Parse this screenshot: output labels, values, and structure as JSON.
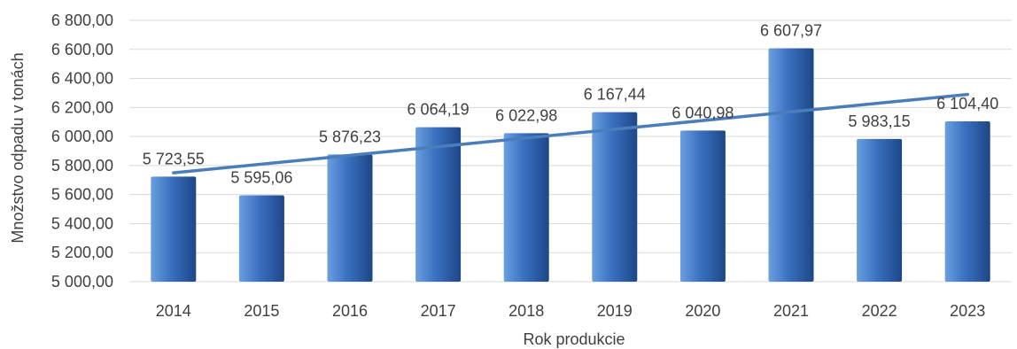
{
  "chart_data": {
    "type": "bar",
    "categories": [
      "2014",
      "2015",
      "2016",
      "2017",
      "2018",
      "2019",
      "2020",
      "2021",
      "2022",
      "2023"
    ],
    "values": [
      5723.55,
      5595.06,
      5876.23,
      6064.19,
      6022.98,
      6167.44,
      6040.98,
      6607.97,
      5983.15,
      6104.4
    ],
    "value_labels": [
      "5 723,55",
      "5 595,06",
      "5 876,23",
      "6 064,19",
      "6 022,98",
      "6 167,44",
      "6 040,98",
      "6 607,97",
      "5 983,15",
      "6 104,40"
    ],
    "xlabel": "Rok produkcie",
    "ylabel": "Množstvo odpadu v tonách",
    "ylim": [
      5000,
      6800
    ],
    "yticks": [
      5000,
      5200,
      5400,
      5600,
      5800,
      6000,
      6200,
      6400,
      6600,
      6800
    ],
    "ytick_labels": [
      "5 000,00",
      "5 200,00",
      "5 400,00",
      "5 600,00",
      "5 800,00",
      "6 000,00",
      "6 200,00",
      "6 400,00",
      "6 600,00",
      "6 800,00"
    ],
    "grid": true,
    "legend": "none",
    "trendline": {
      "type": "linear",
      "from": 5750,
      "to": 6290
    },
    "colors": {
      "bar_light": "#6a9fe0",
      "bar_mid": "#3a6fc0",
      "bar_dark": "#1d4786",
      "trend": "#4a7ebb"
    }
  }
}
